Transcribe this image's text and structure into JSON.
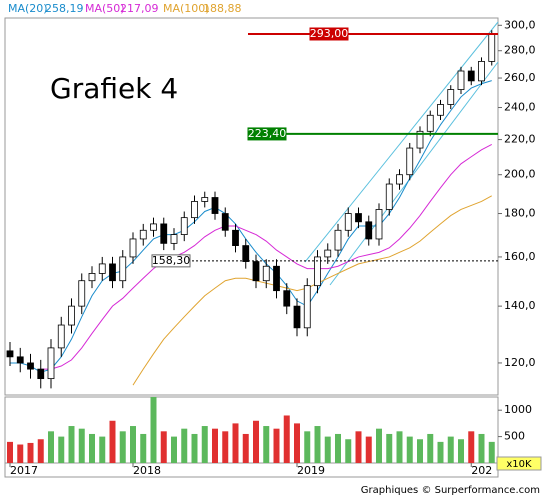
{
  "chart_data": {
    "type": "candlestick",
    "title": "Grafiek 4",
    "footer": "Graphiques © Surperformance.com",
    "log_scale": true,
    "ylim": [
      110,
      306
    ],
    "yticks": [
      {
        "value": 120,
        "label": "120,0"
      },
      {
        "value": 140,
        "label": "140,0"
      },
      {
        "value": 160,
        "label": "160,0"
      },
      {
        "value": 180,
        "label": "180,0"
      },
      {
        "value": 200,
        "label": "200,0"
      },
      {
        "value": 220,
        "label": "220,0"
      },
      {
        "value": 240,
        "label": "240,0"
      },
      {
        "value": 260,
        "label": "260,0"
      },
      {
        "value": 280,
        "label": "280,0"
      },
      {
        "value": 300,
        "label": "300,0"
      }
    ],
    "xticks": [
      {
        "value": 0,
        "label": "2017"
      },
      {
        "value": 12,
        "label": "2018"
      },
      {
        "value": 28,
        "label": "2019"
      },
      {
        "value": 45,
        "label": "202"
      }
    ],
    "open": [
      124,
      122,
      120,
      118,
      115,
      125,
      133,
      140,
      150,
      153,
      157,
      150,
      160,
      168,
      172,
      175,
      166,
      170,
      178,
      186,
      188,
      180,
      172,
      165,
      158,
      150,
      156,
      146,
      140,
      132,
      148,
      160,
      163,
      172,
      180,
      176,
      168,
      182,
      195,
      200,
      215,
      225,
      235,
      242,
      252,
      265,
      258,
      272
    ],
    "high": [
      127,
      125,
      123,
      121,
      128,
      136,
      143,
      153,
      156,
      160,
      160,
      163,
      171,
      175,
      178,
      178,
      173,
      181,
      189,
      191,
      191,
      183,
      175,
      168,
      161,
      159,
      159,
      149,
      143,
      151,
      163,
      166,
      175,
      183,
      183,
      179,
      185,
      198,
      203,
      218,
      228,
      238,
      245,
      255,
      268,
      268,
      275,
      296
    ],
    "low": [
      119,
      117,
      115,
      112,
      112,
      122,
      130,
      137,
      147,
      150,
      147,
      147,
      157,
      165,
      169,
      163,
      163,
      167,
      175,
      183,
      177,
      169,
      162,
      155,
      147,
      147,
      143,
      137,
      129,
      129,
      145,
      157,
      160,
      169,
      173,
      165,
      165,
      179,
      192,
      197,
      212,
      222,
      232,
      239,
      249,
      255,
      255,
      269
    ],
    "close": [
      122,
      120,
      118,
      115,
      125,
      133,
      140,
      150,
      153,
      157,
      150,
      160,
      168,
      172,
      175,
      166,
      170,
      178,
      186,
      188,
      180,
      172,
      165,
      158,
      150,
      156,
      146,
      140,
      132,
      148,
      160,
      163,
      172,
      180,
      176,
      168,
      182,
      195,
      200,
      215,
      225,
      235,
      242,
      252,
      265,
      258,
      272,
      293
    ],
    "up_color": "#ffffff",
    "down_color": "#000000",
    "series": [
      {
        "name": "MA(20)",
        "color": "#1a8ccc",
        "legend_value": {
          "value": 258.19,
          "label": "258,19"
        },
        "values": [
          120,
          120,
          119,
          117,
          118,
          122,
          128,
          136,
          144,
          150,
          153,
          154,
          158,
          163,
          168,
          170,
          170,
          172,
          176,
          181,
          183,
          180,
          175,
          168,
          162,
          157,
          153,
          148,
          142,
          140,
          146,
          153,
          160,
          168,
          174,
          174,
          174,
          180,
          188,
          198,
          208,
          219,
          229,
          238,
          247,
          253,
          256,
          258.19
        ]
      },
      {
        "name": "MA(50)",
        "color": "#d62ad6",
        "legend_value": {
          "value": 217.09,
          "label": "217,09"
        },
        "values": [
          null,
          null,
          null,
          118,
          118,
          119,
          121,
          125,
          130,
          135,
          140,
          143,
          147,
          151,
          155,
          158,
          160,
          162,
          165,
          169,
          172,
          174,
          174,
          172,
          170,
          167,
          163,
          160,
          157,
          155,
          155,
          155,
          156,
          158,
          160,
          161,
          162,
          164,
          168,
          173,
          179,
          186,
          193,
          200,
          206,
          210,
          214,
          217.09
        ]
      },
      {
        "name": "MA(100)",
        "color": "#e0a430",
        "legend_value": {
          "value": 188.88,
          "label": "188,88"
        },
        "values": [
          null,
          null,
          null,
          null,
          null,
          null,
          null,
          null,
          null,
          null,
          null,
          null,
          113,
          118,
          123,
          128,
          132,
          136,
          140,
          144,
          147,
          150,
          151,
          151,
          150,
          149,
          148,
          147,
          146,
          147,
          149,
          151,
          153,
          155,
          157,
          158,
          159,
          160,
          162,
          164,
          167,
          171,
          175,
          179,
          182,
          184,
          186,
          188.88
        ]
      }
    ],
    "levels": [
      {
        "value": 293,
        "label": "293,00",
        "color": "#cc0000"
      },
      {
        "value": 223.4,
        "label": "223,40",
        "color": "#008000"
      },
      {
        "value": 158.3,
        "label": "158,30",
        "color": "#000000",
        "dashed": true
      }
    ],
    "volume": {
      "unit": "x10K",
      "ylim": [
        0,
        1250
      ],
      "yticks": [
        500,
        1000
      ],
      "up_color": "#5cb85c",
      "down_color": "#e03030",
      "values": [
        400,
        350,
        380,
        450,
        600,
        500,
        700,
        650,
        550,
        500,
        800,
        600,
        700,
        550,
        1250,
        600,
        500,
        650,
        550,
        700,
        650,
        600,
        750,
        550,
        800,
        700,
        650,
        900,
        750,
        600,
        700,
        500,
        550,
        450,
        600,
        500,
        650,
        550,
        600,
        500,
        450,
        550,
        400,
        500,
        450,
        600,
        550,
        400
      ]
    }
  }
}
